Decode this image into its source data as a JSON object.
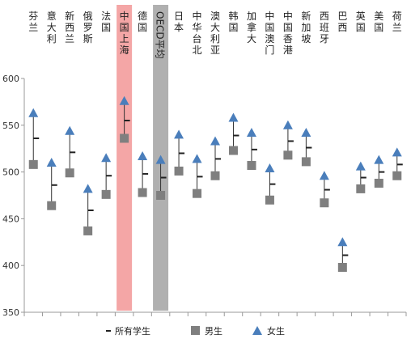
{
  "chart_data": {
    "type": "scatter",
    "categories": [
      "芬兰",
      "意大利",
      "新西兰",
      "俄罗斯",
      "法国",
      "中国上海",
      "德国",
      "OECD平均",
      "日本",
      "中华台北",
      "澳大利亚",
      "韩国",
      "加拿大",
      "中国澳门",
      "中国香港",
      "新加坡",
      "西班牙",
      "巴西",
      "英国",
      "美国",
      "荷兰"
    ],
    "highlighted": [
      {
        "category": "中国上海",
        "color": "#f4a6a6"
      },
      {
        "category": "OECD平均",
        "color": "#b0b0b0"
      }
    ],
    "series": [
      {
        "name": "所有学生",
        "marker": "dash",
        "color": "#222222",
        "values": [
          536,
          486,
          521,
          459,
          496,
          555,
          498,
          494,
          520,
          495,
          514,
          539,
          524,
          487,
          533,
          526,
          481,
          411,
          494,
          500,
          508
        ]
      },
      {
        "name": "男生",
        "marker": "square",
        "color": "#7f7f7f",
        "values": [
          508,
          464,
          499,
          437,
          476,
          536,
          478,
          475,
          501,
          477,
          496,
          523,
          507,
          470,
          518,
          511,
          467,
          398,
          482,
          488,
          496
        ]
      },
      {
        "name": "女生",
        "marker": "triangle",
        "color": "#4a7ebb",
        "values": [
          563,
          510,
          544,
          482,
          515,
          576,
          517,
          513,
          540,
          514,
          533,
          558,
          542,
          504,
          550,
          542,
          496,
          425,
          506,
          513,
          521
        ]
      }
    ],
    "ylim": [
      350,
      600
    ],
    "yticks": [
      350,
      400,
      450,
      500,
      550,
      600
    ],
    "grid": false,
    "legend_position": "bottom"
  }
}
